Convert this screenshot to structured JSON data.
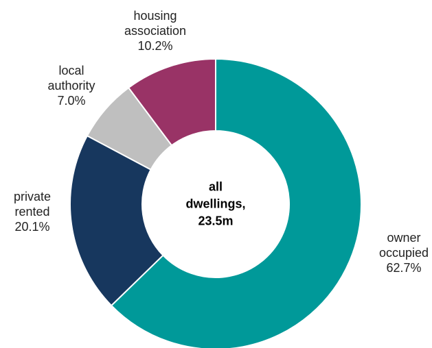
{
  "chart_data": {
    "type": "donut",
    "center_label": "all dwellings, 23.5m",
    "categories": [
      "owner occupied",
      "private rented",
      "local authority",
      "housing association"
    ],
    "values": [
      62.7,
      20.1,
      7.0,
      10.2
    ],
    "value_labels": [
      "62.7%",
      "20.1%",
      "7.0%",
      "10.2%"
    ],
    "colors": [
      "#009999",
      "#17375e",
      "#bfbfbf",
      "#993366"
    ]
  }
}
